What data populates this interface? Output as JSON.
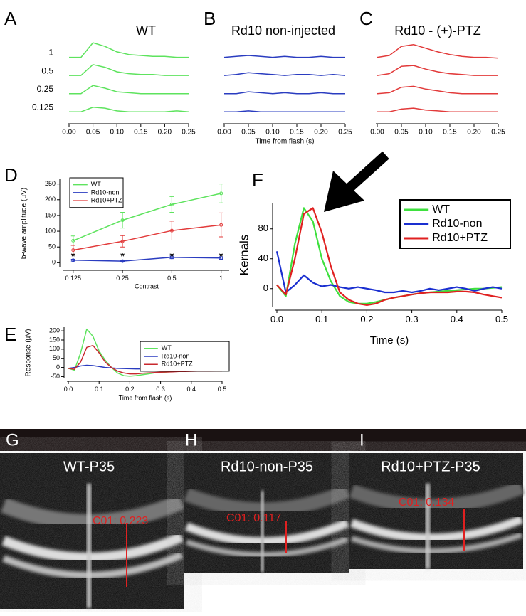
{
  "chart_data": [
    {
      "type": "line",
      "panel": "A",
      "title": "WT",
      "legend": false,
      "x": [
        0,
        0.025,
        0.05,
        0.075,
        0.1,
        0.125,
        0.15,
        0.175,
        0.2,
        0.225,
        0.25
      ],
      "xlim": [
        0,
        0.25
      ],
      "ylim": [
        1,
        10
      ],
      "xticks": [
        {
          "value": 0,
          "label": "0.00"
        },
        {
          "value": 0.05,
          "label": "0.05"
        },
        {
          "value": 0.1,
          "label": "0.10"
        },
        {
          "value": 0.15,
          "label": "0.15"
        },
        {
          "value": 0.2,
          "label": "0.20"
        },
        {
          "value": 0.25,
          "label": "0.25"
        }
      ],
      "series": [
        {
          "name": "1",
          "color": "#5ee35e",
          "values": [
            8,
            8,
            9.6,
            9.2,
            8.6,
            8.3,
            8.2,
            8.1,
            8.1,
            8.0,
            8.0
          ]
        },
        {
          "name": "0.5",
          "color": "#5ee35e",
          "values": [
            6,
            6,
            7.2,
            6.9,
            6.4,
            6.2,
            6.1,
            6.1,
            6.0,
            6.0,
            6.0
          ]
        },
        {
          "name": "0.25",
          "color": "#5ee35e",
          "values": [
            4,
            4,
            4.9,
            4.6,
            4.2,
            4.1,
            4.0,
            4.0,
            4.0,
            4.0,
            4.0
          ]
        },
        {
          "name": "0.125",
          "color": "#5ee35e",
          "values": [
            2,
            2,
            2.5,
            2.4,
            2.1,
            2.0,
            2.0,
            2.0,
            2.0,
            2.1,
            2.0
          ]
        }
      ]
    },
    {
      "type": "line",
      "panel": "B",
      "title": "Rd10 non-injected",
      "legend": false,
      "xlabel": "Time from flash (s)",
      "x": [
        0,
        0.025,
        0.05,
        0.075,
        0.1,
        0.125,
        0.15,
        0.175,
        0.2,
        0.225,
        0.25
      ],
      "xlim": [
        0,
        0.25
      ],
      "ylim": [
        1,
        10
      ],
      "xticks": [
        {
          "value": 0,
          "label": "0.00"
        },
        {
          "value": 0.05,
          "label": "0.05"
        },
        {
          "value": 0.1,
          "label": "0.10"
        },
        {
          "value": 0.15,
          "label": "0.15"
        },
        {
          "value": 0.2,
          "label": "0.20"
        },
        {
          "value": 0.25,
          "label": "0.25"
        }
      ],
      "series": [
        {
          "color": "#2a3cc0",
          "values": [
            8,
            8.1,
            8.2,
            8.1,
            8.0,
            8.1,
            8.0,
            8.0,
            8.1,
            8.0,
            8.0
          ]
        },
        {
          "color": "#2a3cc0",
          "values": [
            6,
            6.1,
            6.3,
            6.2,
            6.1,
            6.0,
            6.1,
            6.1,
            6.0,
            6.1,
            6.0
          ]
        },
        {
          "color": "#2a3cc0",
          "values": [
            4,
            4.0,
            4.2,
            4.1,
            4.0,
            4.1,
            4.0,
            4.0,
            4.1,
            4.0,
            4.0
          ]
        },
        {
          "color": "#2a3cc0",
          "values": [
            2,
            2.0,
            2.1,
            2.0,
            2.0,
            2.0,
            2.0,
            2.0,
            2.0,
            2.0,
            2.0
          ]
        }
      ]
    },
    {
      "type": "line",
      "panel": "C",
      "title": "Rd10 - (+)-PTZ",
      "legend": false,
      "x": [
        0,
        0.025,
        0.05,
        0.075,
        0.1,
        0.125,
        0.15,
        0.175,
        0.2,
        0.225,
        0.25
      ],
      "xlim": [
        0,
        0.25
      ],
      "ylim": [
        1,
        10
      ],
      "xticks": [
        {
          "value": 0,
          "label": "0.00"
        },
        {
          "value": 0.05,
          "label": "0.05"
        },
        {
          "value": 0.1,
          "label": "0.10"
        },
        {
          "value": 0.15,
          "label": "0.15"
        },
        {
          "value": 0.2,
          "label": "0.20"
        },
        {
          "value": 0.25,
          "label": "0.25"
        }
      ],
      "series": [
        {
          "color": "#e23a3a",
          "values": [
            8,
            8.2,
            9.2,
            9.4,
            9.0,
            8.6,
            8.3,
            8.1,
            8.0,
            8.0,
            7.9
          ]
        },
        {
          "color": "#e23a3a",
          "values": [
            6,
            6.2,
            7.0,
            7.1,
            6.7,
            6.4,
            6.2,
            6.1,
            6.0,
            6.0,
            6.0
          ]
        },
        {
          "color": "#e23a3a",
          "values": [
            4,
            4.1,
            4.7,
            4.8,
            4.5,
            4.3,
            4.1,
            4.0,
            4.0,
            4.0,
            4.0
          ]
        },
        {
          "color": "#e23a3a",
          "values": [
            2,
            2.0,
            2.3,
            2.4,
            2.2,
            2.1,
            2.0,
            2.0,
            2.0,
            2.0,
            2.0
          ]
        }
      ]
    },
    {
      "type": "line",
      "panel": "D",
      "legend": "upper left",
      "xscale": "log",
      "ylabel": "b-wave amplitude (µV)",
      "xlabel": "Contrast",
      "x": [
        0.125,
        0.25,
        0.5,
        1
      ],
      "xlim": [
        0.11,
        1.12
      ],
      "ylim": [
        -15,
        265
      ],
      "xticks": [
        0.125,
        0.25,
        0.5,
        1
      ],
      "yticks": [
        0,
        50,
        100,
        150,
        200,
        250
      ],
      "significance": [
        "*",
        "*",
        "*",
        "*"
      ],
      "series": [
        {
          "name": "WT",
          "color": "#5ee35e",
          "values": [
            70,
            135,
            185,
            220
          ],
          "errors": [
            15,
            25,
            25,
            30
          ]
        },
        {
          "name": "Rd10-non",
          "color": "#2a3cc0",
          "values": [
            8,
            5,
            17,
            15
          ],
          "errors": [
            3,
            2,
            4,
            4
          ]
        },
        {
          "name": "Rd10+PTZ",
          "color": "#e23a3a",
          "values": [
            40,
            68,
            102,
            120
          ],
          "errors": [
            15,
            18,
            30,
            38
          ]
        }
      ]
    },
    {
      "type": "line",
      "panel": "E",
      "legend": "right",
      "ylabel": "Response (µV)",
      "xlabel": "Time from flash (s)",
      "x": [
        0,
        0.02,
        0.04,
        0.06,
        0.08,
        0.1,
        0.12,
        0.14,
        0.16,
        0.18,
        0.2,
        0.22,
        0.24,
        0.26,
        0.28,
        0.3,
        0.32,
        0.34,
        0.36,
        0.38,
        0.4,
        0.42,
        0.44,
        0.46,
        0.48,
        0.5
      ],
      "xlim": [
        0,
        0.5
      ],
      "ylim": [
        -60,
        220
      ],
      "xticks": [
        {
          "value": 0,
          "label": "0.0"
        },
        0.1,
        0.2,
        0.3,
        0.4,
        0.5
      ],
      "yticks": [
        -50,
        0,
        50,
        100,
        150,
        200
      ],
      "series": [
        {
          "name": "WT",
          "color": "#5ee35e",
          "values": [
            -5,
            -15,
            80,
            210,
            170,
            90,
            40,
            0,
            -30,
            -45,
            -48,
            -45,
            -40,
            -35,
            -30,
            -28,
            -25,
            -22,
            -22,
            -20,
            -20,
            -18,
            -18,
            -18,
            -17,
            -17
          ]
        },
        {
          "name": "Rd10-non",
          "color": "#2a3cc0",
          "values": [
            -5,
            0,
            8,
            12,
            10,
            5,
            0,
            -3,
            -5,
            -6,
            -7,
            -8,
            -8,
            -9,
            -9,
            -10,
            -10,
            -10,
            -11,
            -11,
            -11,
            -12,
            -12,
            -12,
            -12,
            -12
          ]
        },
        {
          "name": "Rd10+PTZ",
          "color": "#c8282e",
          "values": [
            -5,
            -10,
            30,
            110,
            120,
            80,
            30,
            0,
            -20,
            -30,
            -35,
            -35,
            -32,
            -30,
            -28,
            -26,
            -25,
            -24,
            -22,
            -22,
            -21,
            -20,
            -20,
            -20,
            -19,
            -19
          ]
        }
      ]
    },
    {
      "type": "line",
      "panel": "F",
      "legend": "upper right",
      "ylabel": "Kernals",
      "xlabel": "Time (s)",
      "x": [
        0,
        0.02,
        0.04,
        0.06,
        0.08,
        0.1,
        0.12,
        0.14,
        0.16,
        0.18,
        0.2,
        0.22,
        0.24,
        0.26,
        0.28,
        0.3,
        0.32,
        0.34,
        0.36,
        0.38,
        0.4,
        0.42,
        0.44,
        0.46,
        0.48,
        0.5
      ],
      "xlim": [
        0,
        0.5
      ],
      "ylim": [
        -25,
        115
      ],
      "xticks": [
        {
          "value": 0,
          "label": "0.0"
        },
        0.1,
        0.2,
        0.3,
        0.4,
        0.5
      ],
      "yticks": [
        0,
        40,
        80
      ],
      "series": [
        {
          "name": "WT",
          "color": "#3ee03e",
          "values": [
            5,
            -10,
            60,
            108,
            90,
            40,
            10,
            -10,
            -18,
            -20,
            -20,
            -18,
            -15,
            -12,
            -10,
            -8,
            -6,
            -5,
            -4,
            -3,
            -2,
            -1,
            0,
            0,
            1,
            2
          ]
        },
        {
          "name": "Rd10-non",
          "color": "#1a2fd0",
          "values": [
            50,
            -5,
            5,
            18,
            8,
            3,
            5,
            2,
            0,
            2,
            0,
            -2,
            -5,
            -5,
            -3,
            -5,
            -3,
            0,
            -2,
            0,
            2,
            0,
            -3,
            0,
            2,
            0
          ]
        },
        {
          "name": "Rd10+PTZ",
          "color": "#e02020",
          "values": [
            5,
            -8,
            40,
            100,
            108,
            75,
            30,
            -5,
            -15,
            -20,
            -22,
            -20,
            -15,
            -12,
            -10,
            -8,
            -6,
            -5,
            -5,
            -5,
            -4,
            -4,
            -5,
            -8,
            -10,
            -12
          ]
        }
      ]
    }
  ],
  "images": [
    {
      "panel": "G",
      "title": "WT-P35",
      "measurement": "C01: 0.223"
    },
    {
      "panel": "H",
      "title": "Rd10-non-P35",
      "measurement": "C01: 0.117"
    },
    {
      "panel": "I",
      "title": "Rd10+PTZ-P35",
      "measurement": "C01: 0.134"
    }
  ]
}
